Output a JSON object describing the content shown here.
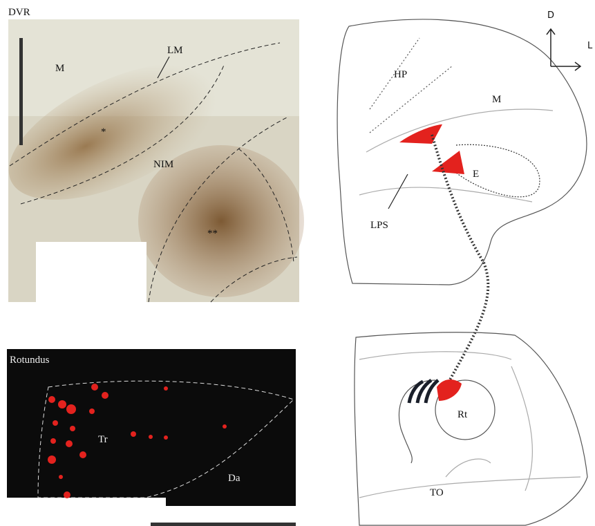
{
  "panels": {
    "dvr": {
      "title": "DVR",
      "labels": [
        "M",
        "LM",
        "NIM",
        "*",
        "**"
      ]
    },
    "rotundus": {
      "title": "Rotundus",
      "labels": [
        "Tr",
        "Da"
      ]
    },
    "schematic": {
      "labels": [
        "HP",
        "M",
        "E",
        "LPS",
        "Rt",
        "TO"
      ],
      "orientation": [
        "D",
        "L"
      ]
    }
  }
}
